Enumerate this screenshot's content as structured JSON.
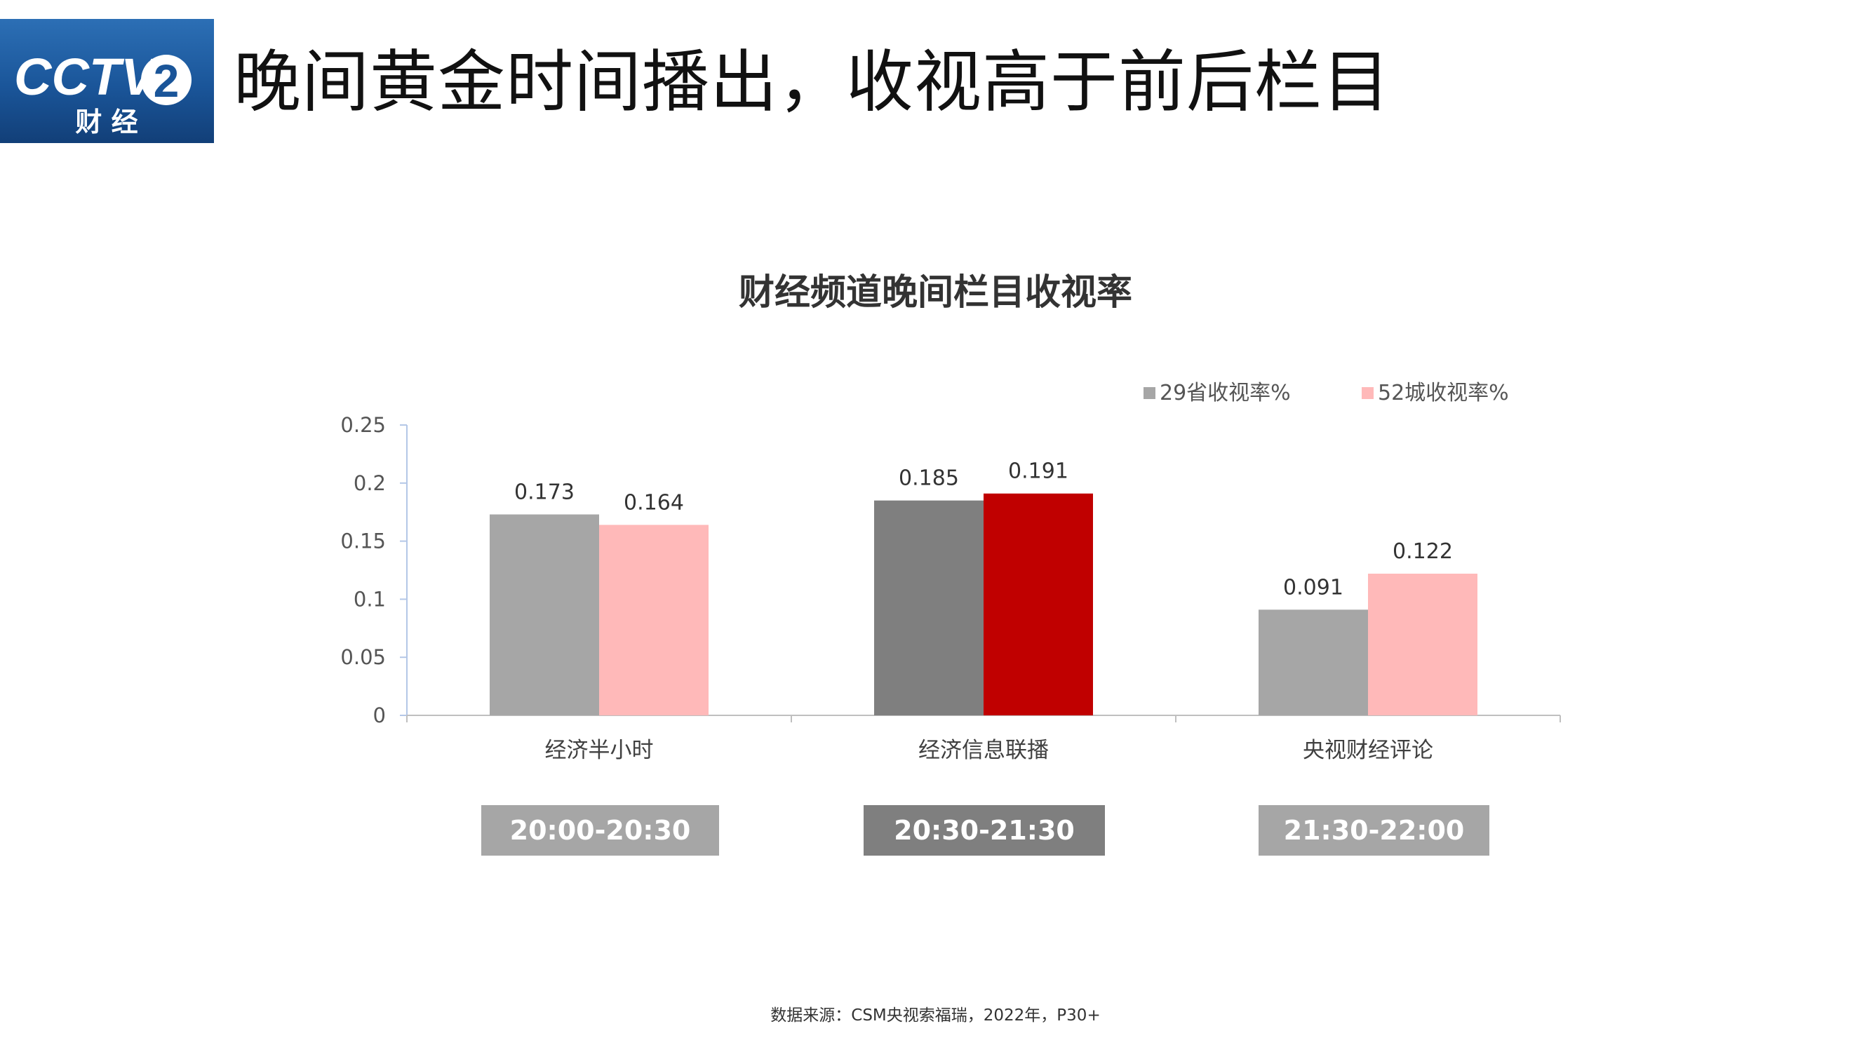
{
  "logo": {
    "brand": "CCTV",
    "channel_number": "2",
    "channel_name": "财 经"
  },
  "slide": {
    "title": "晚间黄金时间播出，收视高于前后栏目",
    "source": "数据来源：CSM央视索福瑞，2022年，P30+"
  },
  "time_slots": [
    {
      "label": "20:00-20:30",
      "color": "#a6a6a6"
    },
    {
      "label": "20:30-21:30",
      "color": "#7f7f7f"
    },
    {
      "label": "21:30-22:00",
      "color": "#a6a6a6"
    }
  ],
  "chart_data": {
    "type": "bar",
    "title": "财经频道晚间栏目收视率",
    "categories": [
      "经济半小时",
      "经济信息联播",
      "央视财经评论"
    ],
    "series": [
      {
        "name": "29省收视率%",
        "values": [
          0.173,
          0.185,
          0.091
        ],
        "data_labels": [
          "0.173",
          "0.185",
          "0.091"
        ],
        "color": "#a6a6a6",
        "highlight_colors": [
          "#a6a6a6",
          "#7f7f7f",
          "#a6a6a6"
        ]
      },
      {
        "name": "52城收视率%",
        "values": [
          0.164,
          0.191,
          0.122
        ],
        "data_labels": [
          "0.164",
          "0.191",
          "0.122"
        ],
        "color": "#ffb9b9",
        "highlight_colors": [
          "#ffb9b9",
          "#c00000",
          "#ffb9b9"
        ]
      }
    ],
    "ylim": [
      0,
      0.25
    ],
    "yticks": [
      0,
      0.05,
      0.1,
      0.15,
      0.2,
      0.25
    ],
    "ytick_labels": [
      "0",
      "0.05",
      "0.1",
      "0.15",
      "0.2",
      "0.25"
    ],
    "grid": false,
    "legend_position": "top-right",
    "xlabel": "",
    "ylabel": ""
  }
}
